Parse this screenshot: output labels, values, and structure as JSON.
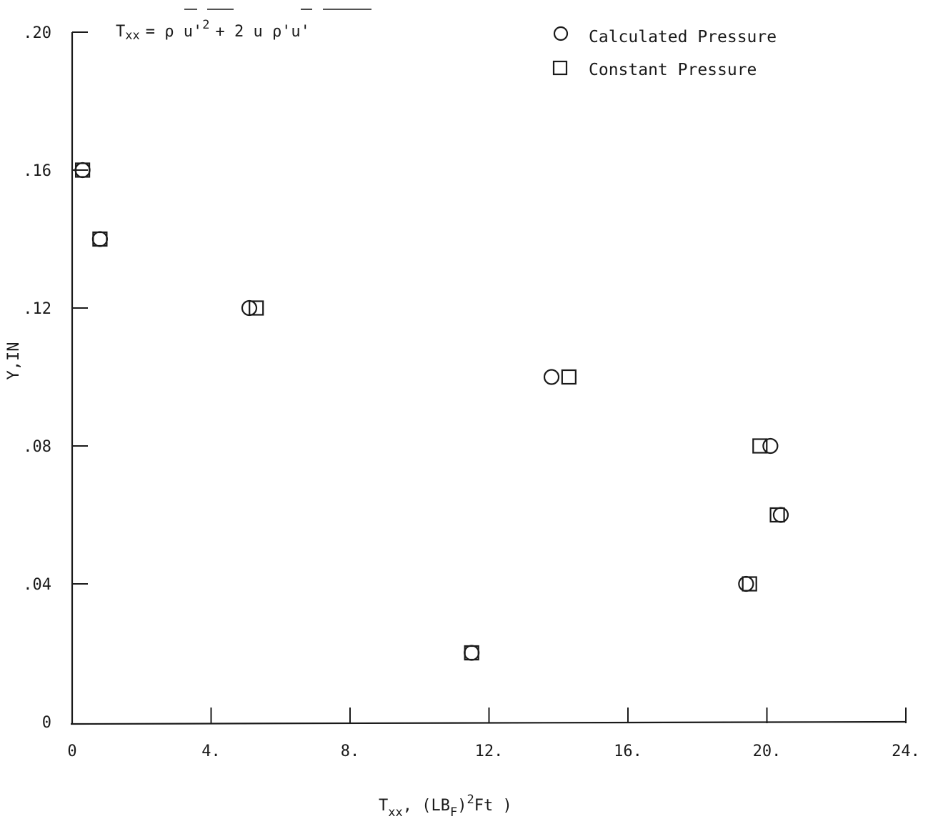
{
  "chart_data": {
    "type": "scatter",
    "title": "",
    "formula": {
      "lhs": "T",
      "lhs_sub": "xx",
      "rhs": "= ρ u'",
      "sup": "2",
      "rhs2": "+ 2 u ρ'u'"
    },
    "xlabel": {
      "main": "T",
      "sub": "xx",
      "mid": ", (LB",
      "sub2": "F",
      "after": ")",
      "sup": "2",
      "end": "Ft )"
    },
    "ylabel": "Y,IN",
    "xlim": [
      0,
      24
    ],
    "ylim": [
      0,
      0.2
    ],
    "x_ticks": [
      {
        "value": 0,
        "label": "0"
      },
      {
        "value": 4,
        "label": "4."
      },
      {
        "value": 8,
        "label": "8."
      },
      {
        "value": 12,
        "label": "12."
      },
      {
        "value": 16,
        "label": "16."
      },
      {
        "value": 20,
        "label": "20."
      },
      {
        "value": 24,
        "label": "24."
      }
    ],
    "y_ticks": [
      {
        "value": 0,
        "label": "0"
      },
      {
        "value": 0.04,
        "label": ".04"
      },
      {
        "value": 0.08,
        "label": ".08"
      },
      {
        "value": 0.12,
        "label": ".12"
      },
      {
        "value": 0.16,
        "label": ".16"
      },
      {
        "value": 0.2,
        "label": ".20"
      }
    ],
    "legend_position": "top-right",
    "series": [
      {
        "name": "Calculated Pressure",
        "marker": "circle",
        "x": [
          11.5,
          19.4,
          20.4,
          20.1,
          13.8,
          5.1,
          0.8,
          0.3
        ],
        "y": [
          0.02,
          0.04,
          0.06,
          0.08,
          0.1,
          0.12,
          0.14,
          0.16
        ]
      },
      {
        "name": "Constant Pressure",
        "marker": "square",
        "x": [
          11.5,
          19.5,
          20.3,
          19.8,
          14.3,
          5.3,
          0.8,
          0.3
        ],
        "y": [
          0.02,
          0.04,
          0.06,
          0.08,
          0.1,
          0.12,
          0.14,
          0.16
        ]
      }
    ]
  }
}
